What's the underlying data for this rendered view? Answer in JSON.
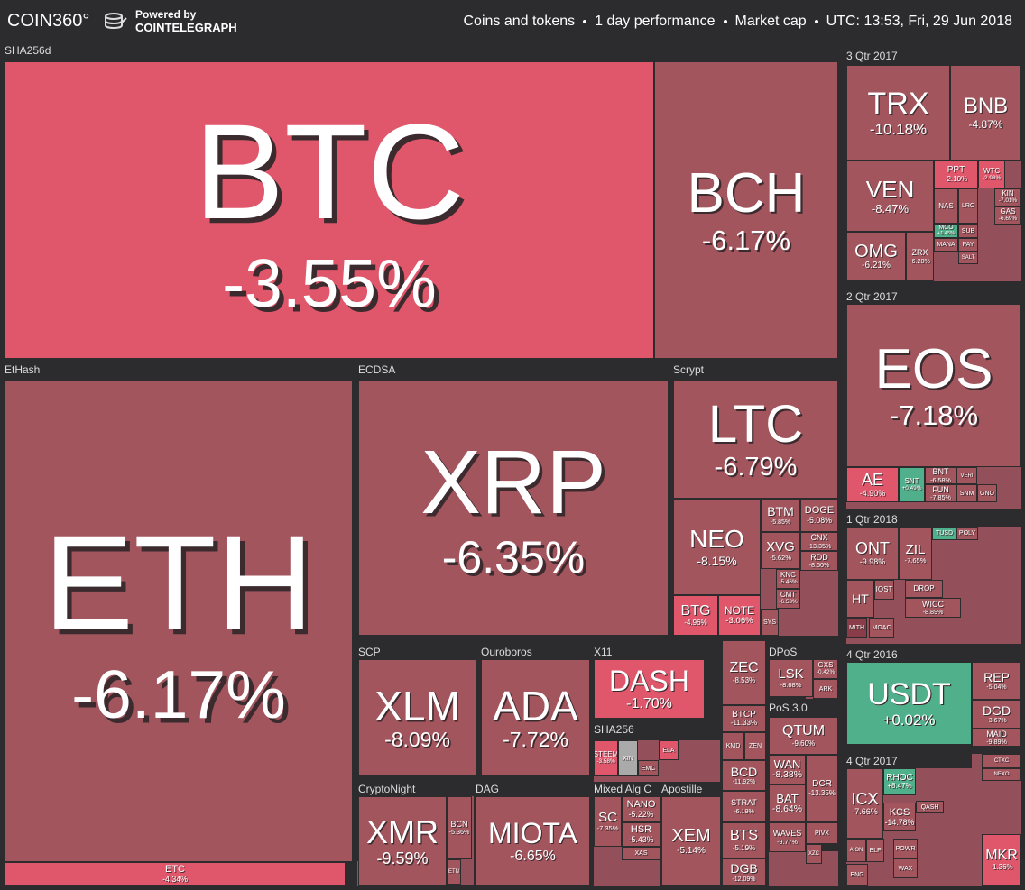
{
  "header": {
    "brand": "COIN360°",
    "powered_by": "Powered by",
    "partner": "COINTELEGRAPH",
    "info": [
      "Coins and tokens",
      "1 day performance",
      "Market cap",
      "UTC: 13:53, Fri, 29 Jun 2018"
    ]
  },
  "groups": [
    {
      "label": "SHA256d",
      "tiles": [
        {
          "symbol": "BTC",
          "change": "-3.55%"
        },
        {
          "symbol": "BCH",
          "change": "-6.17%"
        }
      ]
    },
    {
      "label": "EtHash",
      "tiles": [
        {
          "symbol": "ETH",
          "change": "-6.17%"
        },
        {
          "symbol": "ETC",
          "change": "-4.34%"
        }
      ]
    },
    {
      "label": "ECDSA",
      "tiles": [
        {
          "symbol": "XRP",
          "change": "-6.35%"
        }
      ]
    },
    {
      "label": "Scrypt",
      "tiles": [
        {
          "symbol": "LTC",
          "change": "-6.79%"
        },
        {
          "symbol": "NEO",
          "change": "-8.15%"
        },
        {
          "symbol": "BTG",
          "change": "-4.96%"
        },
        {
          "symbol": "NOTE",
          "change": "-3.06%"
        },
        {
          "symbol": "BTM",
          "change": "-5.85%"
        },
        {
          "symbol": "DOGE",
          "change": "-5.08%"
        },
        {
          "symbol": "XVG",
          "change": "-5.62%"
        },
        {
          "symbol": "CNX",
          "change": "-13.35%"
        },
        {
          "symbol": "RDD",
          "change": "-8.60%"
        },
        {
          "symbol": "KNC",
          "change": "-5.46%"
        },
        {
          "symbol": "CMT",
          "change": "-6.53%"
        },
        {
          "symbol": "SYS"
        }
      ]
    },
    {
      "label": "SCP",
      "tiles": [
        {
          "symbol": "XLM",
          "change": "-8.09%"
        }
      ]
    },
    {
      "label": "Ouroboros",
      "tiles": [
        {
          "symbol": "ADA",
          "change": "-7.72%"
        }
      ]
    },
    {
      "label": "X11",
      "tiles": [
        {
          "symbol": "DASH",
          "change": "-1.70%"
        }
      ]
    },
    {
      "label": "SHA256",
      "tiles": [
        {
          "symbol": "STEEM",
          "change": "-3.58%"
        },
        {
          "symbol": "XIN"
        },
        {
          "symbol": "ELA"
        },
        {
          "symbol": "EMC"
        }
      ]
    },
    {
      "label": "CryptoNight",
      "tiles": [
        {
          "symbol": "XMR",
          "change": "-9.59%"
        },
        {
          "symbol": "BCN",
          "change": "-5.36%"
        },
        {
          "symbol": "ETN"
        }
      ]
    },
    {
      "label": "DAG",
      "tiles": [
        {
          "symbol": "MIOTA",
          "change": "-6.65%"
        }
      ]
    },
    {
      "label": "Mixed Alg C",
      "tiles": [
        {
          "symbol": "SC",
          "change": "-7.35%"
        },
        {
          "symbol": "NANO",
          "change": "-5.22%"
        },
        {
          "symbol": "HSR",
          "change": "-5.43%"
        },
        {
          "symbol": "XAS"
        }
      ]
    },
    {
      "label": "Apostille",
      "tiles": [
        {
          "symbol": "XEM",
          "change": "-5.14%"
        }
      ]
    },
    {
      "tiles": [
        {
          "symbol": "ZEC",
          "change": "-8.53%"
        },
        {
          "symbol": "BTCP",
          "change": "-11.33%"
        },
        {
          "symbol": "KMD"
        },
        {
          "symbol": "ZEN"
        },
        {
          "symbol": "BCD",
          "change": "-11.92%"
        },
        {
          "symbol": "STRAT",
          "change": "-6.19%"
        },
        {
          "symbol": "BTS",
          "change": "-5.19%"
        },
        {
          "symbol": "DGB",
          "change": "-12.09%"
        }
      ]
    },
    {
      "label": "DPoS",
      "tiles": [
        {
          "symbol": "LSK",
          "change": "-8.68%"
        },
        {
          "symbol": "GXS",
          "change": "-0.42%"
        },
        {
          "symbol": "ARK"
        }
      ]
    },
    {
      "label": "PoS 3.0",
      "tiles": [
        {
          "symbol": "QTUM",
          "change": "-9.60%"
        },
        {
          "symbol": "WAN",
          "change": "-8.38%"
        },
        {
          "symbol": "BAT",
          "change": "-8.64%"
        },
        {
          "symbol": "DCR",
          "change": "-13.35%"
        },
        {
          "symbol": "WAVES",
          "change": "-9.77%"
        },
        {
          "symbol": "PIVX"
        },
        {
          "symbol": "XZC"
        }
      ]
    },
    {
      "label": "3 Qtr 2017",
      "tiles": [
        {
          "symbol": "TRX",
          "change": "-10.18%"
        },
        {
          "symbol": "BNB",
          "change": "-4.87%"
        },
        {
          "symbol": "VEN",
          "change": "-8.47%"
        },
        {
          "symbol": "OMG",
          "change": "-6.21%"
        },
        {
          "symbol": "PPT",
          "change": "-2.10%"
        },
        {
          "symbol": "WTC",
          "change": "-2.93%"
        },
        {
          "symbol": "NAS"
        },
        {
          "symbol": "LRC"
        },
        {
          "symbol": "KIN",
          "change": "-7.01%"
        },
        {
          "symbol": "GAS",
          "change": "-6.69%"
        },
        {
          "symbol": "ZRX",
          "change": "-6.20%"
        },
        {
          "symbol": "MCO",
          "change": "+1.45%"
        },
        {
          "symbol": "MANA"
        },
        {
          "symbol": "SUB"
        },
        {
          "symbol": "PAY"
        },
        {
          "symbol": "SALT"
        }
      ]
    },
    {
      "label": "2 Qtr 2017",
      "tiles": [
        {
          "symbol": "EOS",
          "change": "-7.18%"
        },
        {
          "symbol": "AE",
          "change": "-4.90%"
        },
        {
          "symbol": "SNT",
          "change": "+0.49%"
        },
        {
          "symbol": "BNT",
          "change": "-6.58%"
        },
        {
          "symbol": "FUN",
          "change": "-7.85%"
        },
        {
          "symbol": "VERI"
        },
        {
          "symbol": "SNM"
        },
        {
          "symbol": "GNO"
        }
      ]
    },
    {
      "label": "1 Qtr 2018",
      "tiles": [
        {
          "symbol": "ONT",
          "change": "-9.98%"
        },
        {
          "symbol": "ZIL",
          "change": "-7.65%"
        },
        {
          "symbol": "TUSD"
        },
        {
          "symbol": "POLY"
        },
        {
          "symbol": "HT"
        },
        {
          "symbol": "IOST"
        },
        {
          "symbol": "DROP"
        },
        {
          "symbol": "WICC",
          "change": "-8.89%"
        },
        {
          "symbol": "MITH"
        },
        {
          "symbol": "MOAC"
        }
      ]
    },
    {
      "label": "4 Qtr 2016",
      "tiles": [
        {
          "symbol": "USDT",
          "change": "+0.02%"
        },
        {
          "symbol": "REP",
          "change": "-5.04%"
        },
        {
          "symbol": "DGD",
          "change": "-3.67%"
        },
        {
          "symbol": "MAID",
          "change": "-9.89%"
        }
      ]
    },
    {
      "label": "4 Qtr 2017",
      "tiles": [
        {
          "symbol": "ICX",
          "change": "-7.66%"
        },
        {
          "symbol": "RHOC",
          "change": "+8.47%"
        },
        {
          "symbol": "KCS",
          "change": "-14.78%"
        },
        {
          "symbol": "QASH"
        },
        {
          "symbol": "MKR",
          "change": "-1.36%"
        },
        {
          "symbol": "AION"
        },
        {
          "symbol": "ELF"
        },
        {
          "symbol": "ENG"
        },
        {
          "symbol": "POWR"
        },
        {
          "symbol": "WAX"
        },
        {
          "symbol": "CTXC"
        },
        {
          "symbol": "NEXO"
        }
      ]
    }
  ]
}
